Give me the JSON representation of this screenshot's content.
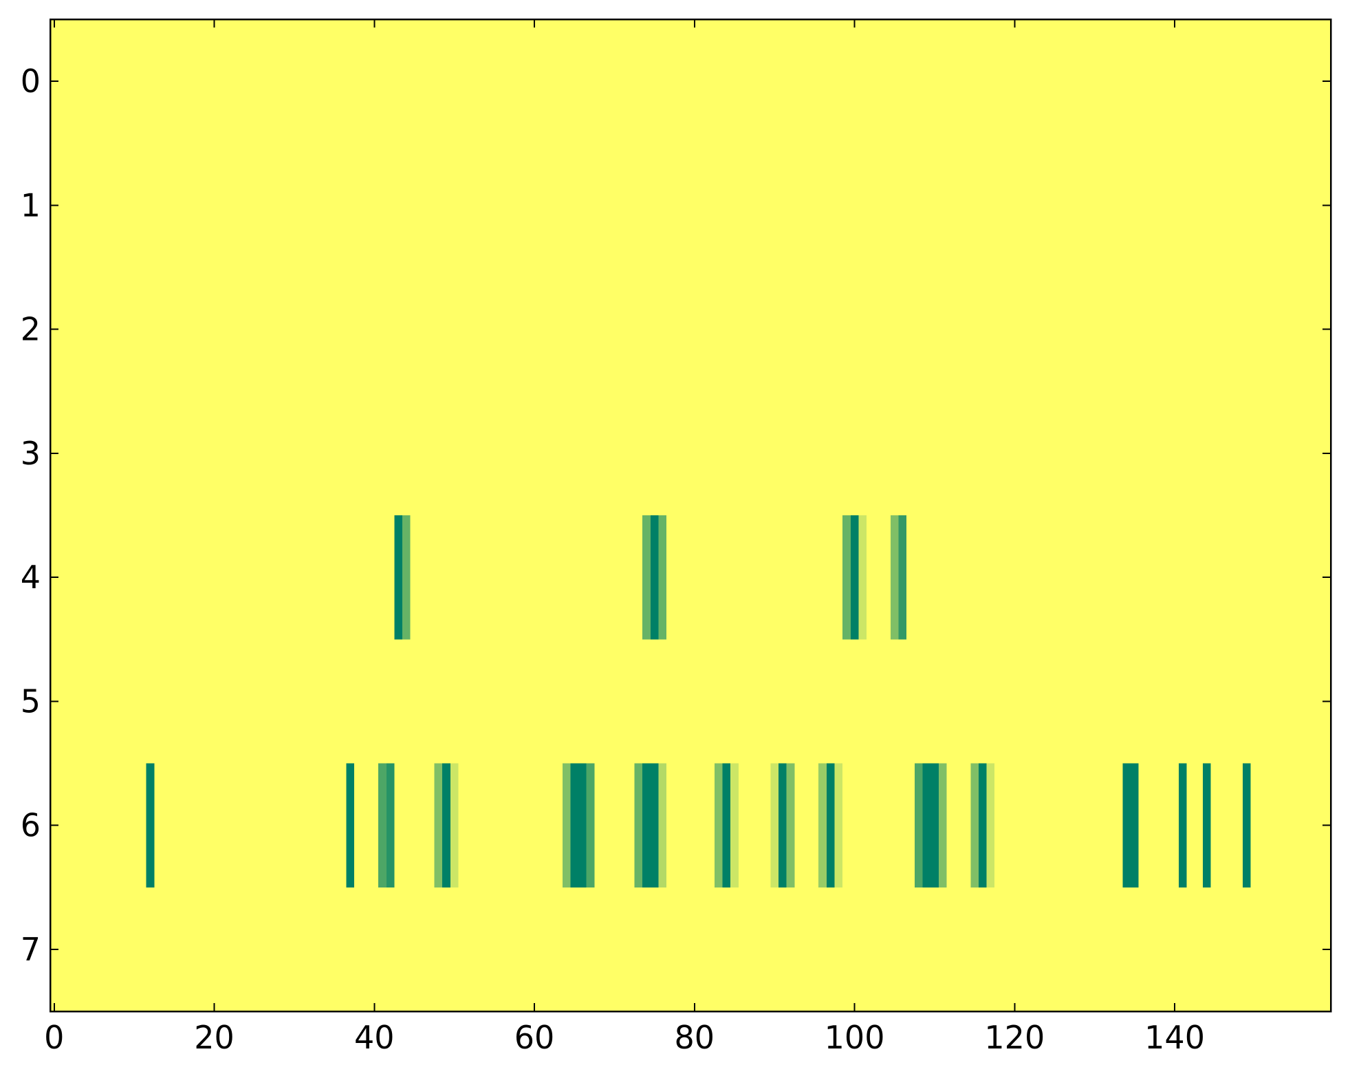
{
  "chart_data": {
    "type": "heatmap",
    "colormap": "summer_r",
    "xlim": [
      -0.5,
      159.5
    ],
    "ylim": [
      7.5,
      -0.5
    ],
    "xticks": [
      0,
      20,
      40,
      60,
      80,
      100,
      120,
      140
    ],
    "yticks": [
      0,
      1,
      2,
      3,
      4,
      5,
      6,
      7
    ],
    "z": [
      [
        0,
        0,
        0,
        0,
        0,
        0,
        0,
        0,
        0,
        0,
        0,
        0,
        0,
        0,
        0,
        0,
        0,
        0,
        0,
        0,
        0,
        0,
        0,
        0,
        0,
        0,
        0,
        0,
        0,
        0,
        0,
        0,
        0,
        0,
        0,
        0,
        0,
        0,
        0,
        0,
        0,
        0,
        0,
        0,
        0,
        0,
        0,
        0,
        0,
        0,
        0,
        0,
        0,
        0,
        0,
        0,
        0,
        0,
        0,
        0,
        0,
        0,
        0,
        0,
        0,
        0,
        0,
        0,
        0,
        0,
        0,
        0,
        0,
        0,
        0,
        0,
        0,
        0,
        0,
        0,
        0,
        0,
        0,
        0,
        0,
        0,
        0,
        0,
        0,
        0,
        0,
        0,
        0,
        0,
        0,
        0,
        0,
        0,
        0,
        0,
        0,
        0,
        0,
        0,
        0,
        0,
        0,
        0,
        0,
        0,
        0,
        0,
        0,
        0,
        0,
        0,
        0,
        0,
        0,
        0,
        0,
        0,
        0,
        0,
        0,
        0,
        0,
        0,
        0,
        0,
        0,
        0,
        0,
        0,
        0,
        0,
        0,
        0,
        0,
        0,
        0,
        0,
        0,
        0,
        0,
        0,
        0,
        0,
        0,
        0,
        0,
        0,
        0,
        0,
        0,
        0,
        0,
        0,
        0,
        0
      ],
      [
        0,
        0,
        0,
        0,
        0,
        0,
        0,
        0,
        0,
        0,
        0,
        0,
        0,
        0,
        0,
        0,
        0,
        0,
        0,
        0,
        0,
        0,
        0,
        0,
        0,
        0,
        0,
        0,
        0,
        0,
        0,
        0,
        0,
        0,
        0,
        0,
        0,
        0,
        0,
        0,
        0,
        0,
        0,
        0,
        0,
        0,
        0,
        0,
        0,
        0,
        0,
        0,
        0,
        0,
        0,
        0,
        0,
        0,
        0,
        0,
        0,
        0,
        0,
        0,
        0,
        0,
        0,
        0,
        0,
        0,
        0,
        0,
        0,
        0,
        0,
        0,
        0,
        0,
        0,
        0,
        0,
        0,
        0,
        0,
        0,
        0,
        0,
        0,
        0,
        0,
        0,
        0,
        0,
        0,
        0,
        0,
        0,
        0,
        0,
        0,
        0,
        0,
        0,
        0,
        0,
        0,
        0,
        0,
        0,
        0,
        0,
        0,
        0,
        0,
        0,
        0,
        0,
        0,
        0,
        0,
        0,
        0,
        0,
        0,
        0,
        0,
        0,
        0,
        0,
        0,
        0,
        0,
        0,
        0,
        0,
        0,
        0,
        0,
        0,
        0,
        0,
        0,
        0,
        0,
        0,
        0,
        0,
        0,
        0,
        0,
        0,
        0,
        0,
        0,
        0,
        0,
        0,
        0,
        0,
        0
      ],
      [
        0,
        0,
        0,
        0,
        0,
        0,
        0,
        0,
        0,
        0,
        0,
        0,
        0,
        0,
        0,
        0,
        0,
        0,
        0,
        0,
        0,
        0,
        0,
        0,
        0,
        0,
        0,
        0,
        0,
        0,
        0,
        0,
        0,
        0,
        0,
        0,
        0,
        0,
        0,
        0,
        0,
        0,
        0,
        0,
        0,
        0,
        0,
        0,
        0,
        0,
        0,
        0,
        0,
        0,
        0,
        0,
        0,
        0,
        0,
        0,
        0,
        0,
        0,
        0,
        0,
        0,
        0,
        0,
        0,
        0,
        0,
        0,
        0,
        0,
        0,
        0,
        0,
        0,
        0,
        0,
        0,
        0,
        0,
        0,
        0,
        0,
        0,
        0,
        0,
        0,
        0,
        0,
        0,
        0,
        0,
        0,
        0,
        0,
        0,
        0,
        0,
        0,
        0,
        0,
        0,
        0,
        0,
        0,
        0,
        0,
        0,
        0,
        0,
        0,
        0,
        0,
        0,
        0,
        0,
        0,
        0,
        0,
        0,
        0,
        0,
        0,
        0,
        0,
        0,
        0,
        0,
        0,
        0,
        0,
        0,
        0,
        0,
        0,
        0,
        0,
        0,
        0,
        0,
        0,
        0,
        0,
        0,
        0,
        0,
        0,
        0,
        0,
        0,
        0,
        0,
        0,
        0,
        0,
        0,
        0
      ],
      [
        0,
        0,
        0,
        0,
        0,
        0,
        0,
        0,
        0,
        0,
        0,
        0,
        0,
        0,
        0,
        0,
        0,
        0,
        0,
        0,
        0,
        0,
        0,
        0,
        0,
        0,
        0,
        0,
        0,
        0,
        0,
        0,
        0,
        0,
        0,
        0,
        0,
        0,
        0,
        0,
        0,
        0,
        0,
        0,
        0,
        0,
        0,
        0,
        0,
        0,
        0,
        0,
        0,
        0,
        0,
        0,
        0,
        0,
        0,
        0,
        0,
        0,
        0,
        0,
        0,
        0,
        0,
        0,
        0,
        0,
        0,
        0,
        0,
        0,
        0,
        0,
        0,
        0,
        0,
        0,
        0,
        0,
        0,
        0,
        0,
        0,
        0,
        0,
        0,
        0,
        0,
        0,
        0,
        0,
        0,
        0,
        0,
        0,
        0,
        0,
        0,
        0,
        0,
        0,
        0,
        0,
        0,
        0,
        0,
        0,
        0,
        0,
        0,
        0,
        0,
        0,
        0,
        0,
        0,
        0,
        0,
        0,
        0,
        0,
        0,
        0,
        0,
        0,
        0,
        0,
        0,
        0,
        0,
        0,
        0,
        0,
        0,
        0,
        0,
        0,
        0,
        0,
        0,
        0,
        0,
        0,
        0,
        0,
        0,
        0,
        0,
        0,
        0,
        0,
        0,
        0,
        0,
        0,
        0,
        0
      ],
      [
        0,
        0,
        0,
        0,
        0,
        0,
        0,
        0,
        0,
        0,
        0,
        0,
        0,
        0,
        0,
        0,
        0,
        0,
        0,
        0,
        0,
        0,
        0,
        0,
        0,
        0,
        0,
        0,
        0,
        0,
        0,
        0,
        0,
        0,
        0,
        0,
        0,
        0,
        0,
        0,
        0,
        0,
        0,
        1,
        0.6,
        0,
        0,
        0,
        0,
        0,
        0,
        0,
        0,
        0,
        0,
        0,
        0,
        0,
        0,
        0,
        0,
        0,
        0,
        0,
        0,
        0,
        0,
        0,
        0,
        0,
        0,
        0,
        0,
        0,
        0.6,
        1,
        0.6,
        0,
        0,
        0,
        0,
        0,
        0,
        0,
        0,
        0,
        0,
        0,
        0,
        0,
        0,
        0,
        0,
        0,
        0,
        0,
        0,
        0,
        0,
        0.6,
        1,
        0.2,
        0,
        0,
        0,
        0.5,
        0.8,
        0,
        0,
        0,
        0,
        0,
        0,
        0,
        0,
        0,
        0,
        0,
        0,
        0,
        0,
        0,
        0,
        0,
        0,
        0,
        0,
        0,
        0,
        0,
        0,
        0,
        0,
        0,
        0,
        0,
        0,
        0,
        0,
        0,
        0,
        0,
        0,
        0,
        0,
        0,
        0,
        0,
        0,
        0,
        0,
        0,
        0,
        0,
        0,
        0,
        0,
        0,
        0,
        0
      ],
      [
        0,
        0,
        0,
        0,
        0,
        0,
        0,
        0,
        0,
        0,
        0,
        0,
        0,
        0,
        0,
        0,
        0,
        0,
        0,
        0,
        0,
        0,
        0,
        0,
        0,
        0,
        0,
        0,
        0,
        0,
        0,
        0,
        0,
        0,
        0,
        0,
        0,
        0,
        0,
        0,
        0,
        0,
        0,
        0,
        0,
        0,
        0,
        0,
        0,
        0,
        0,
        0,
        0,
        0,
        0,
        0,
        0,
        0,
        0,
        0,
        0,
        0,
        0,
        0,
        0,
        0,
        0,
        0,
        0,
        0,
        0,
        0,
        0,
        0,
        0,
        0,
        0,
        0,
        0,
        0,
        0,
        0,
        0,
        0,
        0,
        0,
        0,
        0,
        0,
        0,
        0,
        0,
        0,
        0,
        0,
        0,
        0,
        0,
        0,
        0,
        0,
        0,
        0,
        0,
        0,
        0,
        0,
        0,
        0,
        0,
        0,
        0,
        0,
        0,
        0,
        0,
        0,
        0,
        0,
        0,
        0,
        0,
        0,
        0,
        0,
        0,
        0,
        0,
        0,
        0,
        0,
        0,
        0,
        0,
        0,
        0,
        0,
        0,
        0,
        0,
        0,
        0,
        0,
        0,
        0,
        0,
        0,
        0,
        0,
        0,
        0,
        0,
        0,
        0,
        0,
        0,
        0,
        0,
        0,
        0
      ],
      [
        0,
        0,
        0,
        0,
        0,
        0,
        0,
        0,
        0,
        0,
        0,
        0,
        1,
        0,
        0,
        0,
        0,
        0,
        0,
        0,
        0,
        0,
        0,
        0,
        0,
        0,
        0,
        0,
        0,
        0,
        0,
        0,
        0,
        0,
        0,
        0,
        0,
        1,
        0,
        0,
        0,
        0.7,
        0.85,
        0,
        0,
        0,
        0,
        0,
        0.5,
        1,
        0.2,
        0,
        0,
        0,
        0,
        0,
        0,
        0,
        0,
        0,
        0,
        0,
        0,
        0,
        0.5,
        1,
        1,
        0.7,
        0,
        0,
        0,
        0,
        0,
        0.6,
        1,
        1,
        0.3,
        0,
        0,
        0,
        0,
        0,
        0,
        0.5,
        1,
        0.2,
        0,
        0,
        0,
        0,
        0.2,
        1,
        0.5,
        0,
        0,
        0,
        0.4,
        1,
        0.2,
        0,
        0,
        0,
        0,
        0,
        0,
        0,
        0,
        0,
        0.7,
        1,
        1,
        0.5,
        0,
        0,
        0,
        0.5,
        1,
        0.2,
        0,
        0,
        0,
        0,
        0,
        0,
        0,
        0,
        0,
        0,
        0,
        0,
        0,
        0,
        0,
        0,
        1,
        1,
        0,
        0,
        0,
        0,
        0,
        1,
        0,
        0,
        1,
        0,
        0,
        0,
        0,
        1,
        0,
        0,
        0,
        0,
        0,
        0,
        0,
        0,
        0,
        0
      ],
      [
        0,
        0,
        0,
        0,
        0,
        0,
        0,
        0,
        0,
        0,
        0,
        0,
        0,
        0,
        0,
        0,
        0,
        0,
        0,
        0,
        0,
        0,
        0,
        0,
        0,
        0,
        0,
        0,
        0,
        0,
        0,
        0,
        0,
        0,
        0,
        0,
        0,
        0,
        0,
        0,
        0,
        0,
        0,
        0,
        0,
        0,
        0,
        0,
        0,
        0,
        0,
        0,
        0,
        0,
        0,
        0,
        0,
        0,
        0,
        0,
        0,
        0,
        0,
        0,
        0,
        0,
        0,
        0,
        0,
        0,
        0,
        0,
        0,
        0,
        0,
        0,
        0,
        0,
        0,
        0,
        0,
        0,
        0,
        0,
        0,
        0,
        0,
        0,
        0,
        0,
        0,
        0,
        0,
        0,
        0,
        0,
        0,
        0,
        0,
        0,
        0,
        0,
        0,
        0,
        0,
        0,
        0,
        0,
        0,
        0,
        0,
        0,
        0,
        0,
        0,
        0,
        0,
        0,
        0,
        0,
        0,
        0,
        0,
        0,
        0,
        0,
        0,
        0,
        0,
        0,
        0,
        0,
        0,
        0,
        0,
        0,
        0,
        0,
        0,
        0,
        0,
        0,
        0,
        0,
        0,
        0,
        0,
        0,
        0,
        0,
        0,
        0,
        0,
        0,
        0,
        0,
        0,
        0,
        0,
        0
      ]
    ]
  }
}
